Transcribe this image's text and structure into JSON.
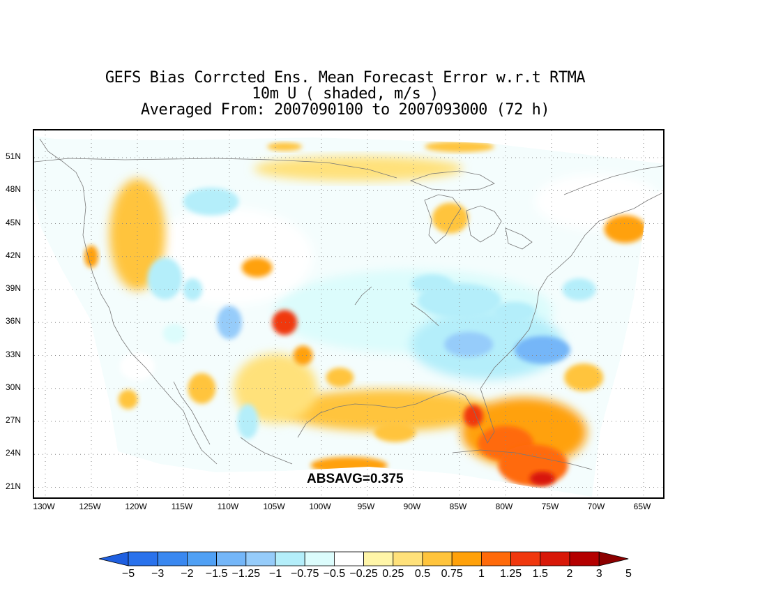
{
  "title": {
    "line1": "GEFS Bias Corrcted Ens. Mean Forecast Error w.r.t RTMA",
    "line2": "10m U ( shaded, m/s )",
    "line3": "Averaged From: 2007090100 to 2007093000 (72 h)"
  },
  "map": {
    "region": "Continental United States",
    "lat_labels": [
      "51N",
      "48N",
      "45N",
      "42N",
      "39N",
      "36N",
      "33N",
      "30N",
      "27N",
      "24N",
      "21N"
    ],
    "lon_labels": [
      "130W",
      "125W",
      "120W",
      "115W",
      "110W",
      "105W",
      "100W",
      "95W",
      "90W",
      "85W",
      "80W",
      "75W",
      "70W",
      "65W"
    ],
    "grid": "dotted",
    "absavg_label": "ABSAVG=0.375",
    "features": [
      {
        "name": "strongest positive error",
        "lat": 22,
        "lon": -77.5,
        "value": 1.5
      },
      {
        "name": "positive error Florida",
        "lat": 27.5,
        "lon": -83.5,
        "value": 1.25
      },
      {
        "name": "positive error New Mexico",
        "lat": 36,
        "lon": -104,
        "value": 1.25
      },
      {
        "name": "negative error Southeast US",
        "lat": 33.5,
        "lon": -76,
        "value": -1.25
      },
      {
        "name": "negative error Ohio Valley",
        "lat": 36,
        "lon": -86,
        "value": -1
      }
    ]
  },
  "colorbar": {
    "labels": [
      "−5",
      "−3",
      "−2",
      "−1.5",
      "−1.25",
      "−1",
      "−0.75",
      "−0.5",
      "−0.25",
      "0.25",
      "0.5",
      "0.75",
      "1",
      "1.25",
      "1.5",
      "2",
      "3",
      "5"
    ],
    "colors": [
      "#1e5fe0",
      "#2a72ec",
      "#3a88f0",
      "#50a0f4",
      "#74b6f8",
      "#96ccfa",
      "#b4eefa",
      "#dcfcfc",
      "#ffffff",
      "#fff5a8",
      "#ffe17a",
      "#ffc43c",
      "#ffa10a",
      "#ff6a0a",
      "#f0380e",
      "#d81808",
      "#b40000",
      "#8c0000"
    ]
  }
}
